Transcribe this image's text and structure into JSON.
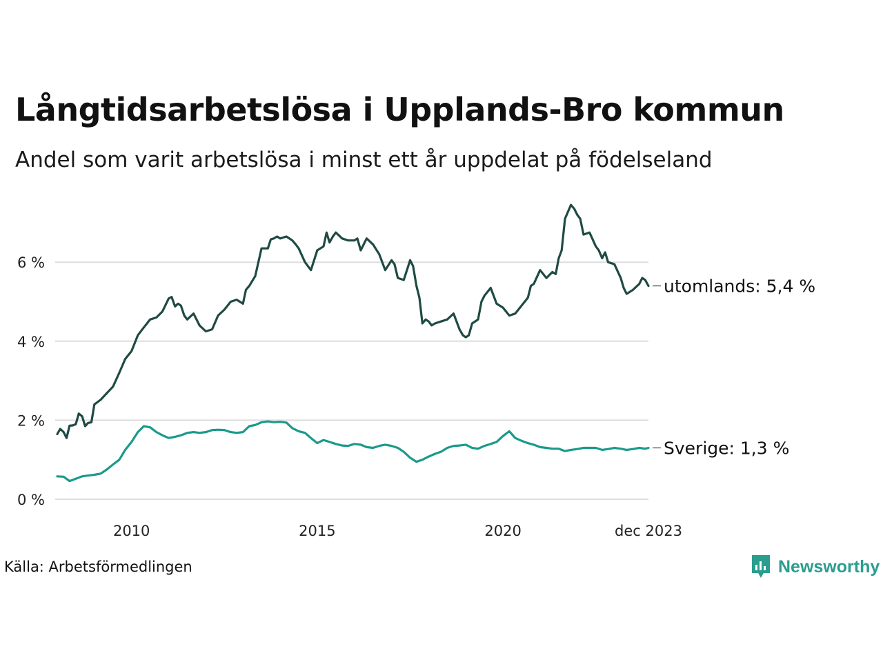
{
  "header": {
    "title": "Långtidsarbetslösa i Upplands-Bro kommun",
    "subtitle": "Andel som varit arbetslösa i minst ett år uppdelat på födelseland"
  },
  "footer": {
    "source": "Källa: Arbetsförmedlingen",
    "brand": "Newsworthy"
  },
  "colors": {
    "utomlands": "#1f4a44",
    "sverige": "#1a9a8a",
    "grid": "#dddddd",
    "brand": "#2a9d8f"
  },
  "chart_data": {
    "type": "line",
    "title": "Långtidsarbetslösa i Upplands-Bro kommun",
    "ylim": [
      0,
      7.4
    ],
    "xlim": [
      2008.0,
      2023.917
    ],
    "yticks": [
      0,
      2,
      4,
      6
    ],
    "ytick_labels": [
      "0 %",
      "2 %",
      "4 %",
      "6 %"
    ],
    "xticks": [
      2010,
      2015,
      2020,
      2023.917
    ],
    "xtick_labels": [
      "2010",
      "2015",
      "2020",
      "dec 2023"
    ],
    "grid": true,
    "series": [
      {
        "name": "utomlands",
        "end_label": "utomlands: 5,4 %",
        "x": [
          2008.0,
          2008.08,
          2008.17,
          2008.25,
          2008.33,
          2008.42,
          2008.5,
          2008.58,
          2008.67,
          2008.75,
          2008.83,
          2008.92,
          2009.0,
          2009.17,
          2009.33,
          2009.5,
          2009.67,
          2009.83,
          2010.0,
          2010.17,
          2010.33,
          2010.5,
          2010.67,
          2010.83,
          2011.0,
          2011.08,
          2011.17,
          2011.25,
          2011.33,
          2011.42,
          2011.5,
          2011.67,
          2011.83,
          2012.0,
          2012.17,
          2012.33,
          2012.5,
          2012.67,
          2012.83,
          2013.0,
          2013.08,
          2013.17,
          2013.33,
          2013.5,
          2013.67,
          2013.75,
          2013.83,
          2013.92,
          2014.0,
          2014.17,
          2014.33,
          2014.42,
          2014.5,
          2014.67,
          2014.83,
          2015.0,
          2015.17,
          2015.25,
          2015.33,
          2015.42,
          2015.5,
          2015.67,
          2015.83,
          2016.0,
          2016.08,
          2016.17,
          2016.33,
          2016.5,
          2016.67,
          2016.83,
          2017.0,
          2017.08,
          2017.17,
          2017.33,
          2017.5,
          2017.58,
          2017.67,
          2017.75,
          2017.83,
          2017.92,
          2018.0,
          2018.08,
          2018.17,
          2018.33,
          2018.5,
          2018.67,
          2018.83,
          2018.92,
          2019.0,
          2019.08,
          2019.17,
          2019.33,
          2019.42,
          2019.5,
          2019.67,
          2019.83,
          2020.0,
          2020.17,
          2020.33,
          2020.5,
          2020.67,
          2020.75,
          2020.83,
          2021.0,
          2021.17,
          2021.33,
          2021.42,
          2021.5,
          2021.58,
          2021.67,
          2021.83,
          2021.92,
          2022.0,
          2022.08,
          2022.17,
          2022.33,
          2022.5,
          2022.58,
          2022.67,
          2022.75,
          2022.83,
          2023.0,
          2023.17,
          2023.25,
          2023.33,
          2023.5,
          2023.67,
          2023.75,
          2023.83,
          2023.917
        ],
        "y": [
          1.65,
          1.78,
          1.7,
          1.55,
          1.86,
          1.87,
          1.9,
          2.17,
          2.1,
          1.85,
          1.93,
          1.95,
          2.4,
          2.52,
          2.68,
          2.85,
          3.2,
          3.55,
          3.75,
          4.15,
          4.35,
          4.55,
          4.6,
          4.75,
          5.08,
          5.12,
          4.88,
          4.95,
          4.9,
          4.65,
          4.55,
          4.7,
          4.4,
          4.25,
          4.3,
          4.65,
          4.8,
          5.0,
          5.05,
          4.95,
          5.3,
          5.4,
          5.65,
          6.35,
          6.35,
          6.58,
          6.6,
          6.65,
          6.6,
          6.65,
          6.55,
          6.45,
          6.35,
          6.0,
          5.8,
          6.3,
          6.4,
          6.75,
          6.5,
          6.65,
          6.75,
          6.6,
          6.55,
          6.55,
          6.6,
          6.3,
          6.6,
          6.45,
          6.2,
          5.8,
          6.05,
          5.95,
          5.6,
          5.55,
          6.05,
          5.9,
          5.4,
          5.1,
          4.45,
          4.55,
          4.5,
          4.4,
          4.45,
          4.5,
          4.55,
          4.7,
          4.3,
          4.15,
          4.1,
          4.15,
          4.45,
          4.55,
          5.0,
          5.15,
          5.35,
          4.95,
          4.85,
          4.65,
          4.7,
          4.9,
          5.1,
          5.4,
          5.45,
          5.8,
          5.6,
          5.75,
          5.7,
          6.1,
          6.3,
          7.1,
          7.45,
          7.35,
          7.2,
          7.1,
          6.7,
          6.75,
          6.4,
          6.3,
          6.1,
          6.25,
          6.0,
          5.95,
          5.6,
          5.35,
          5.2,
          5.3,
          5.45,
          5.6,
          5.55,
          5.4
        ]
      },
      {
        "name": "Sverige",
        "end_label": "Sverige: 1,3 %",
        "x": [
          2008.0,
          2008.17,
          2008.33,
          2008.5,
          2008.67,
          2008.83,
          2009.0,
          2009.17,
          2009.33,
          2009.5,
          2009.67,
          2009.83,
          2010.0,
          2010.17,
          2010.33,
          2010.5,
          2010.67,
          2010.83,
          2011.0,
          2011.17,
          2011.33,
          2011.5,
          2011.67,
          2011.83,
          2012.0,
          2012.17,
          2012.33,
          2012.5,
          2012.67,
          2012.83,
          2013.0,
          2013.17,
          2013.33,
          2013.5,
          2013.67,
          2013.83,
          2014.0,
          2014.17,
          2014.33,
          2014.5,
          2014.67,
          2014.83,
          2015.0,
          2015.17,
          2015.33,
          2015.5,
          2015.67,
          2015.83,
          2016.0,
          2016.17,
          2016.33,
          2016.5,
          2016.67,
          2016.83,
          2017.0,
          2017.17,
          2017.33,
          2017.5,
          2017.67,
          2017.83,
          2018.0,
          2018.17,
          2018.33,
          2018.5,
          2018.67,
          2018.83,
          2019.0,
          2019.17,
          2019.33,
          2019.5,
          2019.67,
          2019.83,
          2020.0,
          2020.17,
          2020.33,
          2020.5,
          2020.67,
          2020.83,
          2021.0,
          2021.17,
          2021.33,
          2021.5,
          2021.67,
          2021.83,
          2022.0,
          2022.17,
          2022.33,
          2022.5,
          2022.67,
          2022.83,
          2023.0,
          2023.17,
          2023.33,
          2023.5,
          2023.67,
          2023.83,
          2023.917
        ],
        "y": [
          0.58,
          0.57,
          0.46,
          0.52,
          0.58,
          0.6,
          0.62,
          0.65,
          0.75,
          0.88,
          1.0,
          1.25,
          1.45,
          1.7,
          1.85,
          1.82,
          1.7,
          1.62,
          1.55,
          1.58,
          1.62,
          1.68,
          1.7,
          1.68,
          1.7,
          1.75,
          1.76,
          1.75,
          1.7,
          1.68,
          1.7,
          1.85,
          1.88,
          1.95,
          1.97,
          1.95,
          1.96,
          1.94,
          1.8,
          1.72,
          1.68,
          1.55,
          1.42,
          1.5,
          1.45,
          1.4,
          1.36,
          1.35,
          1.4,
          1.38,
          1.32,
          1.3,
          1.35,
          1.38,
          1.35,
          1.3,
          1.2,
          1.05,
          0.95,
          1.0,
          1.08,
          1.15,
          1.2,
          1.3,
          1.35,
          1.36,
          1.38,
          1.3,
          1.28,
          1.35,
          1.4,
          1.45,
          1.6,
          1.72,
          1.55,
          1.48,
          1.42,
          1.38,
          1.32,
          1.3,
          1.28,
          1.28,
          1.22,
          1.25,
          1.27,
          1.3,
          1.3,
          1.3,
          1.25,
          1.27,
          1.3,
          1.28,
          1.25,
          1.27,
          1.3,
          1.28,
          1.3
        ]
      }
    ]
  }
}
